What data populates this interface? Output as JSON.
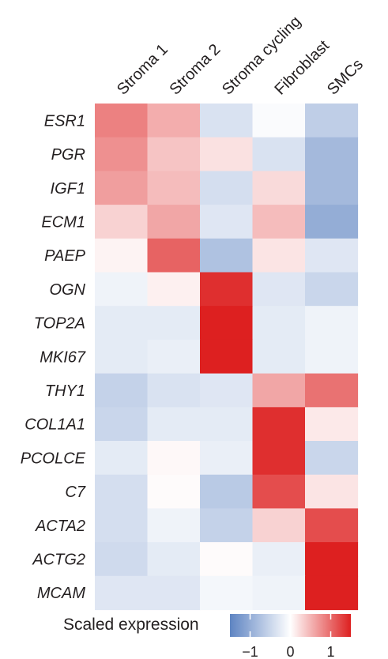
{
  "chart_data": {
    "type": "heatmap",
    "title": "",
    "columns": [
      "Stroma 1",
      "Stroma 2",
      "Stroma cycling",
      "Fibroblast",
      "SMCs"
    ],
    "rows": [
      "ESR1",
      "PGR",
      "IGF1",
      "ECM1",
      "PAEP",
      "OGN",
      "TOP2A",
      "MKI67",
      "THY1",
      "COL1A1",
      "PCOLCE",
      "C7",
      "ACTA2",
      "ACTG2",
      "MCAM"
    ],
    "values": [
      [
        0.85,
        0.55,
        -0.35,
        -0.05,
        -0.6
      ],
      [
        0.75,
        0.4,
        0.2,
        -0.35,
        -0.85
      ],
      [
        0.65,
        0.45,
        -0.4,
        0.25,
        -0.85
      ],
      [
        0.3,
        0.6,
        -0.3,
        0.45,
        -1.0
      ],
      [
        0.08,
        1.05,
        -0.75,
        0.18,
        -0.3
      ],
      [
        -0.15,
        0.1,
        1.4,
        -0.3,
        -0.5
      ],
      [
        -0.25,
        -0.25,
        1.5,
        -0.25,
        -0.15
      ],
      [
        -0.25,
        -0.2,
        1.5,
        -0.25,
        -0.15
      ],
      [
        -0.55,
        -0.35,
        -0.3,
        0.6,
        0.95
      ],
      [
        -0.5,
        -0.25,
        -0.25,
        1.4,
        0.15
      ],
      [
        -0.25,
        0.05,
        -0.2,
        1.4,
        -0.5
      ],
      [
        -0.4,
        0.03,
        -0.65,
        1.2,
        0.18
      ],
      [
        -0.4,
        -0.15,
        -0.55,
        0.3,
        1.2
      ],
      [
        -0.45,
        -0.25,
        0.03,
        -0.2,
        1.5
      ],
      [
        -0.3,
        -0.3,
        -0.1,
        -0.15,
        1.5
      ]
    ],
    "colorbar": {
      "label": "Scaled expression",
      "ticks": [
        -1,
        0,
        1
      ],
      "tick_labels": [
        "−1",
        "0",
        "1"
      ],
      "range": [
        -1.5,
        1.5
      ],
      "colors": {
        "low": "#5e84c2",
        "mid": "#ffffff",
        "high": "#dd2020"
      }
    },
    "grid": false,
    "row_label_style": "italic",
    "column_label_rotation": -45
  }
}
